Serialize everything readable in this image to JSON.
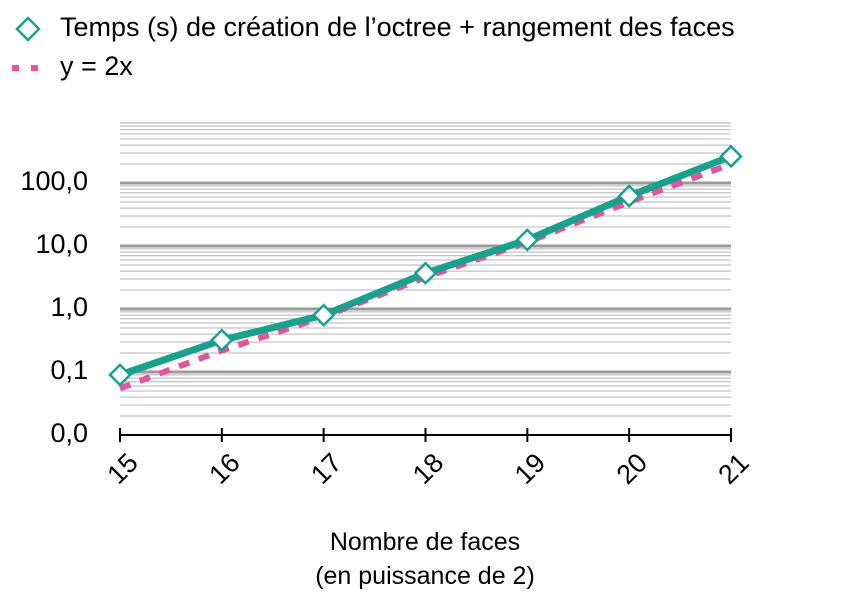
{
  "chart_data": {
    "type": "line",
    "x": [
      15,
      16,
      17,
      18,
      19,
      20,
      21
    ],
    "series": [
      {
        "name": "Temps (s) de création de l’octree + rangement des faces",
        "values": [
          0.09,
          0.32,
          0.8,
          3.7,
          12.5,
          62,
          265
        ],
        "color": "#1aa08d",
        "marker": "diamond",
        "style": "solid"
      },
      {
        "name": "y = 2x",
        "values": [
          0.055,
          0.22,
          0.75,
          3.2,
          11.5,
          50,
          200
        ],
        "color": "#e0559b",
        "style": "dashed"
      }
    ],
    "y_scale": "log",
    "ylim": [
      0.01,
      1000
    ],
    "y_ticks": [
      {
        "value": 0.01,
        "label": "0,0"
      },
      {
        "value": 0.1,
        "label": "0,1"
      },
      {
        "value": 1,
        "label": "1,0"
      },
      {
        "value": 10,
        "label": "10,0"
      },
      {
        "value": 100,
        "label": "100,0"
      }
    ],
    "x_ticks": [
      "15",
      "16",
      "17",
      "18",
      "19",
      "20",
      "21"
    ],
    "xlabel": [
      "Nombre de faces",
      "(en puissance de 2)"
    ],
    "ylabel": "",
    "title": "",
    "grid": true,
    "legend_position": "top-left"
  }
}
